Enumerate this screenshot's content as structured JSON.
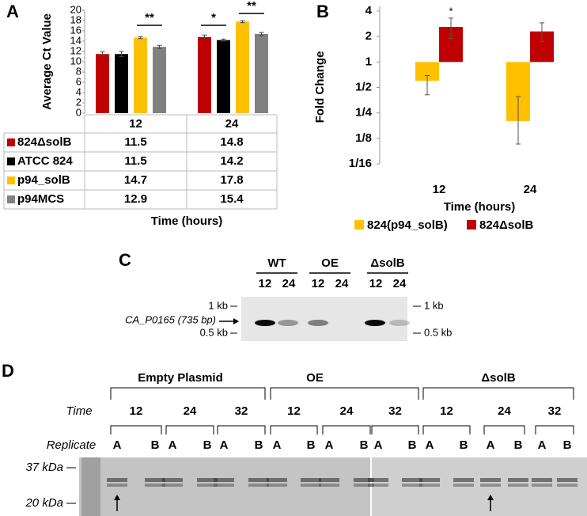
{
  "chart_data": [
    {
      "type": "bar",
      "label": "A",
      "y_label": "Average Ct Value",
      "x_label": "Time (hours)",
      "categories": [
        "12",
        "24"
      ],
      "series": [
        {
          "name": "824ΔsolB",
          "color": "#c00000",
          "values": [
            11.5,
            14.8
          ],
          "errors": [
            0.4,
            0.4
          ]
        },
        {
          "name": "ATCC 824",
          "color": "#000000",
          "values": [
            11.5,
            14.2
          ],
          "errors": [
            0.5,
            0.2
          ]
        },
        {
          "name": "p94_solB",
          "color": "#ffc000",
          "values": [
            14.7,
            17.8
          ],
          "errors": [
            0.2,
            0.2
          ]
        },
        {
          "name": "p94MCS",
          "color": "#808080",
          "values": [
            12.9,
            15.4
          ],
          "errors": [
            0.3,
            0.3
          ]
        }
      ],
      "ylim": [
        0,
        20
      ],
      "yticks": [
        0,
        2,
        4,
        6,
        8,
        10,
        12,
        14,
        16,
        18,
        20
      ],
      "grid": false,
      "annotations": [
        "**",
        "*",
        "**"
      ]
    },
    {
      "type": "bar",
      "log_base": 2,
      "label": "B",
      "y_label": "Fold Change",
      "x_label": "Time (hours)",
      "categories": [
        "12",
        "24"
      ],
      "series": [
        {
          "name": "824(p94_solB)",
          "color": "#ffc000",
          "values": [
            0.6,
            0.2
          ],
          "errors": [
            [
              0.41,
              0.69
            ],
            [
              0.107,
              0.39
            ]
          ]
        },
        {
          "name": "824ΔsolB",
          "color": "#c00000",
          "values": [
            2.6,
            2.3
          ],
          "errors": [
            [
              1.9,
              3.3
            ],
            [
              1.74,
              2.9
            ]
          ]
        }
      ],
      "ylim": [
        0.0625,
        4
      ],
      "yticks": [
        {
          "value": 0.0625,
          "label": "1/16"
        },
        {
          "value": 0.125,
          "label": "1/8"
        },
        {
          "value": 0.25,
          "label": "1/4"
        },
        {
          "value": 0.5,
          "label": "1/2"
        },
        1,
        2,
        4
      ],
      "annotations": [
        "*"
      ]
    }
  ],
  "panel_c": {
    "label": "C",
    "groups": [
      {
        "name": "WT",
        "lanes": [
          "12",
          "24"
        ]
      },
      {
        "name": "OE",
        "lanes": [
          "12",
          "24"
        ]
      },
      {
        "name": "ΔsolB",
        "lanes": [
          "12",
          "24"
        ]
      }
    ],
    "markers_left": [
      "1 kb",
      "0.5 kb"
    ],
    "markers_right": [
      "1 kb",
      "0.5 kb"
    ],
    "band_label": "CA_P0165 (735 bp)"
  },
  "panel_d": {
    "label": "D",
    "time_label": "Time",
    "replicate_label": "Replicate",
    "groups": [
      {
        "name": "Empty Plasmid",
        "times": [
          {
            "time": "12",
            "replicates": [
              "A",
              "B"
            ]
          },
          {
            "time": "24",
            "replicates": [
              "A",
              "B"
            ]
          },
          {
            "time": "32",
            "replicates": [
              "A",
              "B"
            ]
          }
        ]
      },
      {
        "name": "OE",
        "times": [
          {
            "time": "12",
            "replicates": [
              "A",
              "B"
            ]
          },
          {
            "time": "24",
            "replicates": [
              "A",
              "B"
            ]
          },
          {
            "time": "32",
            "replicates": [
              "A",
              "B"
            ]
          }
        ]
      },
      {
        "name": "ΔsolB",
        "times": [
          {
            "time": "12",
            "replicates": [
              "A",
              "B"
            ]
          },
          {
            "time": "24",
            "replicates": [
              "A",
              "B"
            ]
          },
          {
            "time": "32",
            "replicates": [
              "A",
              "B"
            ]
          }
        ]
      }
    ],
    "markers": [
      "37 kDa",
      "20 kDa"
    ]
  }
}
